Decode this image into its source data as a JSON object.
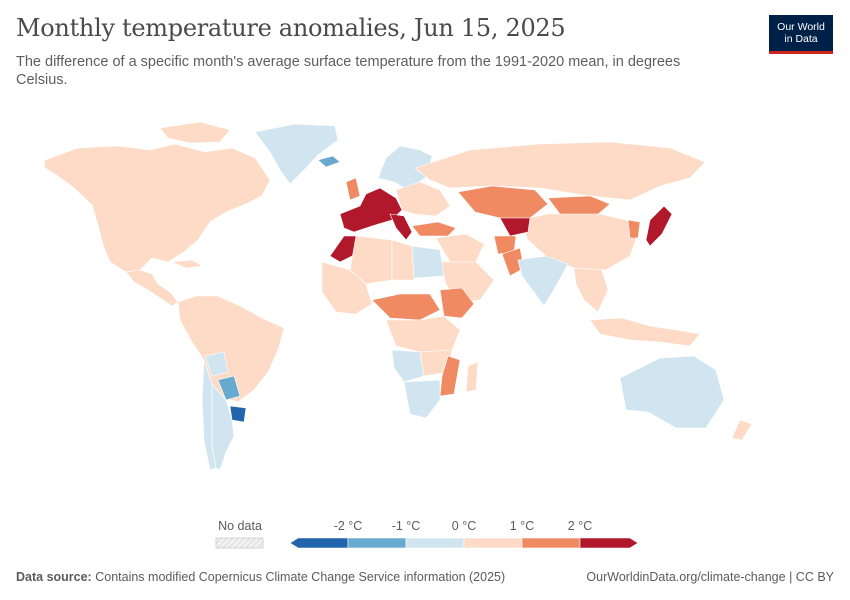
{
  "header": {
    "title": "Monthly temperature anomalies, Jun 15, 2025",
    "subtitle": "The difference of a specific month's average surface temperature from the 1991-2020 mean, in degrees Celsius."
  },
  "logo": {
    "line1": "Our World",
    "line2": "in Data",
    "bg": "#002147",
    "accent": "#ce261e"
  },
  "colors": {
    "lt_m2": "#2166ac",
    "m2_m1": "#67a9cf",
    "m1_0": "#d1e5f0",
    "0_1": "#fddbc7",
    "1_2": "#ef8a62",
    "gt_2": "#b2182b",
    "no_data": "#eeeeee"
  },
  "legend": {
    "no_data_label": "No data",
    "ticks": [
      "-2 °C",
      "-1 °C",
      "0 °C",
      "1 °C",
      "2 °C"
    ],
    "bins": [
      "lt_m2",
      "m2_m1",
      "m1_0",
      "0_1",
      "1_2",
      "gt_2"
    ]
  },
  "map": {
    "regions": [
      {
        "name": "North America",
        "bin": "0_1"
      },
      {
        "name": "Greenland",
        "bin": "m1_0"
      },
      {
        "name": "Iceland",
        "bin": "m2_m1"
      },
      {
        "name": "Central America",
        "bin": "0_1"
      },
      {
        "name": "South America",
        "bin": "0_1"
      },
      {
        "name": "Bolivia",
        "bin": "m1_0"
      },
      {
        "name": "Paraguay",
        "bin": "m2_m1"
      },
      {
        "name": "Uruguay",
        "bin": "lt_m2"
      },
      {
        "name": "Argentina",
        "bin": "m1_0"
      },
      {
        "name": "Chile",
        "bin": "m1_0"
      },
      {
        "name": "Scandinavia",
        "bin": "m1_0"
      },
      {
        "name": "United Kingdom",
        "bin": "1_2"
      },
      {
        "name": "Western Europe",
        "bin": "gt_2"
      },
      {
        "name": "Italy",
        "bin": "gt_2"
      },
      {
        "name": "Eastern Europe",
        "bin": "0_1"
      },
      {
        "name": "Russia",
        "bin": "0_1"
      },
      {
        "name": "Kazakhstan",
        "bin": "1_2"
      },
      {
        "name": "Mongolia",
        "bin": "1_2"
      },
      {
        "name": "China",
        "bin": "0_1"
      },
      {
        "name": "Korea",
        "bin": "1_2"
      },
      {
        "name": "Japan",
        "bin": "gt_2"
      },
      {
        "name": "Turkey",
        "bin": "1_2"
      },
      {
        "name": "Middle East",
        "bin": "0_1"
      },
      {
        "name": "Saudi Arabia",
        "bin": "0_1"
      },
      {
        "name": "Central Asia",
        "bin": "gt_2"
      },
      {
        "name": "Afghanistan",
        "bin": "1_2"
      },
      {
        "name": "Pakistan",
        "bin": "1_2"
      },
      {
        "name": "India",
        "bin": "m1_0"
      },
      {
        "name": "Southeast Asia",
        "bin": "0_1"
      },
      {
        "name": "Indonesia",
        "bin": "0_1"
      },
      {
        "name": "Morocco",
        "bin": "gt_2"
      },
      {
        "name": "Algeria",
        "bin": "0_1"
      },
      {
        "name": "Libya",
        "bin": "0_1"
      },
      {
        "name": "Egypt",
        "bin": "m1_0"
      },
      {
        "name": "West Africa",
        "bin": "0_1"
      },
      {
        "name": "Sahel",
        "bin": "1_2"
      },
      {
        "name": "Ethiopia",
        "bin": "1_2"
      },
      {
        "name": "Central Africa",
        "bin": "0_1"
      },
      {
        "name": "Angola",
        "bin": "m1_0"
      },
      {
        "name": "Zambia",
        "bin": "0_1"
      },
      {
        "name": "Mozambique",
        "bin": "1_2"
      },
      {
        "name": "Southern Africa",
        "bin": "m1_0"
      },
      {
        "name": "Madagascar",
        "bin": "0_1"
      },
      {
        "name": "Australia",
        "bin": "m1_0"
      },
      {
        "name": "New Zealand",
        "bin": "0_1"
      },
      {
        "name": "Antilles",
        "bin": "0_1"
      }
    ]
  },
  "footer": {
    "source_label": "Data source:",
    "source_text": "Contains modified Copernicus Climate Change Service information (2025)",
    "link": "OurWorldinData.org/climate-change",
    "license": "CC BY"
  }
}
